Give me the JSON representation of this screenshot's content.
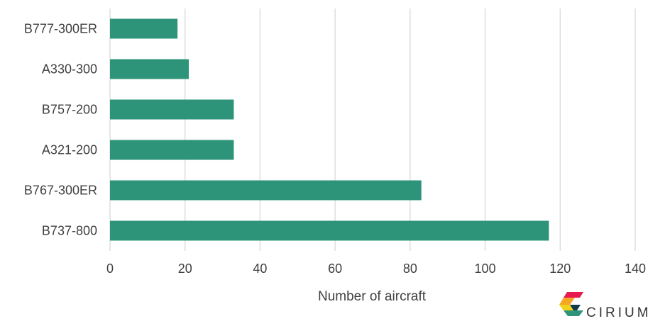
{
  "chart_data": {
    "type": "bar",
    "orientation": "horizontal",
    "categories": [
      "B777-300ER",
      "A330-300",
      "B757-200",
      "A321-200",
      "B767-300ER",
      "B737-800"
    ],
    "values": [
      18,
      21,
      33,
      33,
      83,
      117
    ],
    "xlabel": "Number of aircraft",
    "xlim": [
      0,
      140
    ],
    "xticks": [
      0,
      20,
      40,
      60,
      80,
      100,
      120,
      140
    ],
    "grid": "vertical",
    "legend": "none",
    "bar_color": "#2e9479",
    "grid_color": "#d9d9d9",
    "text_color": "#404040"
  },
  "logo": {
    "text": "CIRIUM",
    "colors": [
      "#e8194f",
      "#f5a623",
      "#f2d31b",
      "#2e9479",
      "#0f3b4a"
    ]
  }
}
